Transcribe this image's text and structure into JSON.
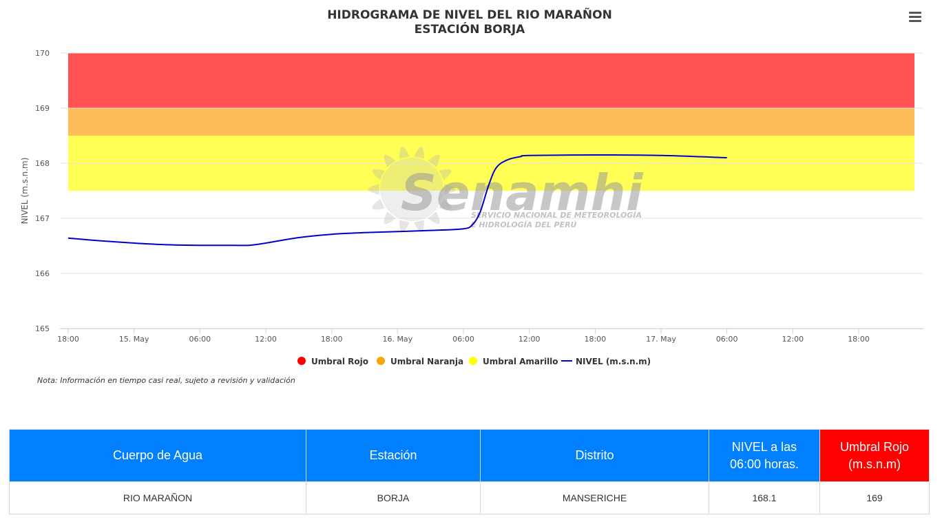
{
  "chart_data": {
    "type": "line",
    "title": "HIDROGRAMA DE NIVEL DEL RIO MARAÑON",
    "subtitle": "ESTACIÓN BORJA",
    "ylabel": "NIVEL (m.s.n.m)",
    "ylim": [
      165,
      170
    ],
    "yticks": [
      "165",
      "166",
      "167",
      "168",
      "169",
      "170"
    ],
    "xlim": [
      0,
      66
    ],
    "xticks": [
      {
        "x": 0,
        "label": "18:00"
      },
      {
        "x": 6,
        "label": "15. May"
      },
      {
        "x": 12,
        "label": "06:00"
      },
      {
        "x": 18,
        "label": "12:00"
      },
      {
        "x": 24,
        "label": "18:00"
      },
      {
        "x": 30,
        "label": "16. May"
      },
      {
        "x": 36,
        "label": "06:00"
      },
      {
        "x": 42,
        "label": "12:00"
      },
      {
        "x": 48,
        "label": "18:00"
      },
      {
        "x": 54,
        "label": "17. May"
      },
      {
        "x": 60,
        "label": "06:00"
      },
      {
        "x": 66,
        "label": "12:00"
      },
      {
        "x": 72,
        "label": "18:00"
      }
    ],
    "bands": [
      {
        "name": "Umbral Rojo",
        "from": 169,
        "to": 170,
        "color": "#ff5252"
      },
      {
        "name": "Umbral Naranja",
        "from": 168.5,
        "to": 169,
        "color": "#ffbd5a"
      },
      {
        "name": "Umbral Amarillo",
        "from": 167.5,
        "to": 168.5,
        "color": "#ffff55"
      }
    ],
    "series": [
      {
        "name": "NIVEL (m.s.n.m)",
        "color": "#0000cc",
        "points": [
          [
            0,
            166.64
          ],
          [
            3,
            166.59
          ],
          [
            6,
            166.55
          ],
          [
            9,
            166.52
          ],
          [
            12,
            166.51
          ],
          [
            15,
            166.51
          ],
          [
            16.5,
            166.51
          ],
          [
            18,
            166.55
          ],
          [
            21,
            166.65
          ],
          [
            24,
            166.71
          ],
          [
            27,
            166.74
          ],
          [
            30,
            166.76
          ],
          [
            33,
            166.78
          ],
          [
            36,
            166.81
          ],
          [
            36.8,
            166.88
          ],
          [
            37.5,
            167.1
          ],
          [
            38.3,
            167.6
          ],
          [
            39,
            167.92
          ],
          [
            40,
            168.06
          ],
          [
            41.2,
            168.12
          ],
          [
            42,
            168.14
          ],
          [
            48,
            168.15
          ],
          [
            54,
            168.14
          ],
          [
            60,
            168.1
          ]
        ]
      }
    ],
    "legend": {
      "placement": "bottom-center",
      "items": [
        {
          "label": "Umbral Rojo",
          "color": "#ff0000",
          "symbol": "dot"
        },
        {
          "label": "Umbral Naranja",
          "color": "#ffa500",
          "symbol": "dot"
        },
        {
          "label": "Umbral Amarillo",
          "color": "#ffff00",
          "symbol": "dot"
        },
        {
          "label": "NIVEL (m.s.n.m)",
          "color": "#0000cc",
          "symbol": "line"
        }
      ]
    },
    "grid": true
  },
  "watermark": {
    "brand": "Senamhi",
    "tagline_1": "SERVICIO NACIONAL DE METEOROLOGÍA",
    "tagline_2": "E HIDROLOGÍA DEL PERÚ"
  },
  "note": "Nota: Información en tiempo casi real, sujeto a revisión y validación",
  "table": {
    "headers": {
      "cuerpo": "Cuerpo de Agua",
      "estacion": "Estación",
      "distrito": "Distrito",
      "nivel_1": "NIVEL a las",
      "nivel_2": "06:00 horas.",
      "umbral_1": "Umbral Rojo",
      "umbral_2": "(m.s.n.m)"
    },
    "row": {
      "cuerpo": "RIO MARAÑON",
      "estacion": "BORJA",
      "distrito": "MANSERICHE",
      "nivel": "168.1",
      "umbral": "169"
    }
  }
}
